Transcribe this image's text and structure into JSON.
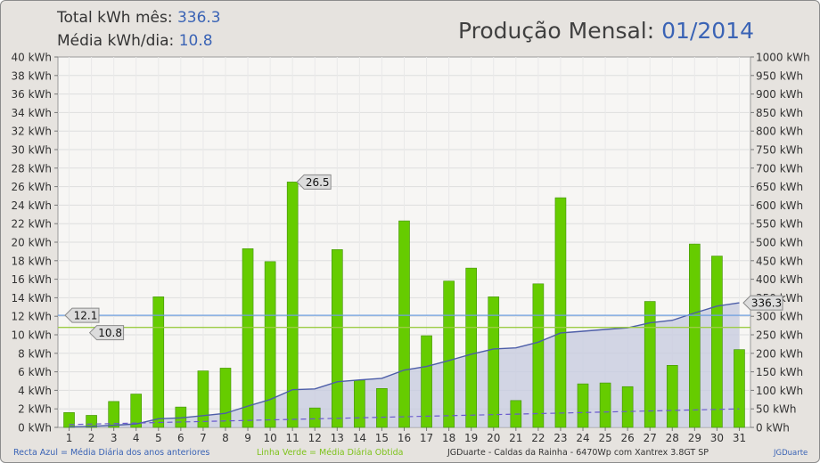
{
  "header": {
    "total_label": "Total kWh mês:",
    "total_value": "336.3",
    "avg_label": "Média kWh/dia:",
    "avg_value": "10.8",
    "title_label": "Produção Mensal:",
    "title_value": "01/2014"
  },
  "footer": {
    "legend_blue": "Recta Azul = Média Diária dos anos anteriores",
    "legend_green": "Linha Verde = Média Diária Obtida",
    "station": "JGDuarte  -  Caldas da Rainha  -  6470Wp com Xantrex 3.8GT SP",
    "credit": "JGDuarte"
  },
  "colors": {
    "bar": "#66cc00",
    "bar_edge": "#3f8f00",
    "cumulative_line": "#4d5ea8",
    "cumulative_fill": "#c5cadf",
    "blue_reference": "#6fa0e0",
    "green_average": "#9ccc45",
    "dashed_previous": "#6a5acd",
    "plot_bg": "#f7f6f4",
    "grid": "#dedede",
    "label_accent": "#3a63b5"
  },
  "chart_data": {
    "type": "bar",
    "categories": [
      "1",
      "2",
      "3",
      "4",
      "5",
      "6",
      "7",
      "8",
      "9",
      "10",
      "11",
      "12",
      "13",
      "14",
      "15",
      "16",
      "17",
      "18",
      "19",
      "20",
      "21",
      "22",
      "23",
      "24",
      "25",
      "26",
      "27",
      "28",
      "29",
      "30",
      "31"
    ],
    "daily_kwh": [
      1.6,
      1.3,
      2.8,
      3.6,
      14.1,
      2.2,
      6.1,
      6.4,
      19.3,
      17.9,
      26.5,
      2.1,
      19.2,
      5.1,
      4.2,
      22.3,
      9.9,
      15.8,
      17.2,
      14.1,
      2.9,
      15.5,
      24.8,
      4.7,
      4.8,
      4.4,
      13.6,
      6.7,
      19.8,
      18.5,
      8.4
    ],
    "cumulative_kwh": [
      1.6,
      2.9,
      5.7,
      9.3,
      23.4,
      25.6,
      31.7,
      38.1,
      57.4,
      75.3,
      101.8,
      103.9,
      123.1,
      128.2,
      132.4,
      154.7,
      164.6,
      180.4,
      197.6,
      211.7,
      214.6,
      230.1,
      254.9,
      259.6,
      264.4,
      268.8,
      282.4,
      289.1,
      308.9,
      327.4,
      336.3
    ],
    "previous_years_daily_avg_kwh": 12.1,
    "obtained_daily_avg_kwh": 10.8,
    "dashed_average_line": [
      0.3,
      2.0
    ],
    "labels": {
      "max_day": "26.5",
      "blue_reference": "12.1",
      "obtained_avg": "10.8",
      "cumulative_total": "336.3"
    },
    "left_axis": {
      "ylim": [
        0,
        40
      ],
      "ticks": [
        "0 kWh",
        "2 kWh",
        "4 kWh",
        "6 kWh",
        "8 kWh",
        "10 kWh",
        "12 kWh",
        "14 kWh",
        "16 kWh",
        "18 kWh",
        "20 kWh",
        "22 kWh",
        "24 kWh",
        "26 kWh",
        "28 kWh",
        "30 kWh",
        "32 kWh",
        "34 kWh",
        "36 kWh",
        "38 kWh",
        "40 kWh"
      ]
    },
    "right_axis": {
      "ylim": [
        0,
        1000
      ],
      "ticks": [
        "0 kWh",
        "50 kWh",
        "100 kWh",
        "150 kWh",
        "200 kWh",
        "250 kWh",
        "300 kWh",
        "350 kWh",
        "400 kWh",
        "450 kWh",
        "500 kWh",
        "550 kWh",
        "600 kWh",
        "650 kWh",
        "700 kWh",
        "750 kWh",
        "800 kWh",
        "850 kWh",
        "900 kWh",
        "950 kWh",
        "1000 kWh"
      ]
    },
    "grid": true
  }
}
